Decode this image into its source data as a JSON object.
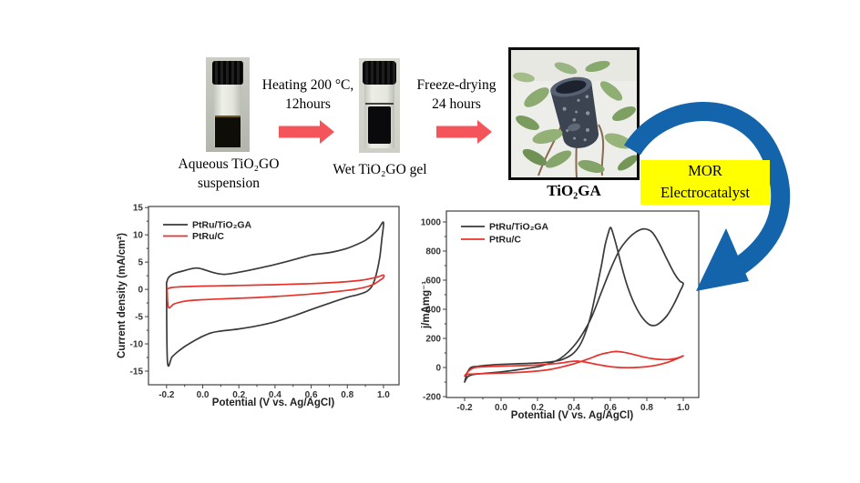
{
  "figure": {
    "process": {
      "step1_label": [
        "Aqueous TiO₂GO",
        "suspension"
      ],
      "arrow1_label": [
        "Heating 200 °C,",
        "12hours"
      ],
      "step2_label": "Wet TiO₂GO gel",
      "arrow2_label": [
        "Freeze-drying",
        "24 hours"
      ],
      "product_label": "TiO₂GA",
      "callout": [
        "MOR",
        "Electrocatalyst"
      ]
    },
    "colors": {
      "process_arrow": "#f4555b",
      "callout_bg": "#ffff00",
      "flow_arrow": "#1464ac",
      "series_black": "#3a3a3a",
      "series_red": "#e8322b"
    }
  },
  "chart_data": [
    {
      "type": "line",
      "name": "cv-chart",
      "title": "",
      "xlabel": "Potential (V vs. Ag/AgCl)",
      "ylabel": "Current density (mA/cm²)",
      "xlim": [
        -0.3,
        1.086
      ],
      "ylim": [
        -17.5,
        15.2
      ],
      "grid": false,
      "legend_position": "top-left",
      "x_tick_values": [
        -0.2,
        0.0,
        0.2,
        0.4,
        0.6,
        0.8,
        1.0
      ],
      "x_tick_labels": [
        "-0.2",
        "0.0",
        "0.2",
        "0.4",
        "0.6",
        "0.8",
        "1.0"
      ],
      "y_tick_values": [
        -15,
        -10,
        -5,
        0,
        5,
        10,
        15
      ],
      "y_tick_labels": [
        "-15",
        "-10",
        "-5",
        "0",
        "5",
        "10",
        "15"
      ],
      "x_minor": [
        -0.1,
        0.1,
        0.3,
        0.5,
        0.7,
        0.9
      ],
      "y_minor": [
        -12.5,
        -7.5,
        -2.5,
        2.5,
        7.5,
        12.5
      ],
      "series": [
        {
          "name": "PtRu/TiO₂GA",
          "color": "#3a3a3a",
          "points": [
            [
              -0.2,
              1.2
            ],
            [
              -0.19,
              2.1
            ],
            [
              -0.17,
              2.7
            ],
            [
              -0.14,
              3.1
            ],
            [
              -0.1,
              3.45
            ],
            [
              -0.06,
              3.8
            ],
            [
              -0.03,
              3.9
            ],
            [
              0.0,
              3.7
            ],
            [
              0.04,
              3.25
            ],
            [
              0.08,
              2.9
            ],
            [
              0.12,
              2.75
            ],
            [
              0.16,
              2.9
            ],
            [
              0.22,
              3.25
            ],
            [
              0.3,
              3.8
            ],
            [
              0.4,
              4.55
            ],
            [
              0.5,
              5.4
            ],
            [
              0.6,
              6.3
            ],
            [
              0.66,
              6.55
            ],
            [
              0.72,
              6.85
            ],
            [
              0.8,
              7.55
            ],
            [
              0.86,
              8.35
            ],
            [
              0.9,
              9.0
            ],
            [
              0.94,
              10.0
            ],
            [
              0.97,
              11.0
            ],
            [
              1.0,
              12.3
            ],
            [
              0.99,
              9.0
            ],
            [
              0.98,
              6.0
            ],
            [
              0.965,
              3.4
            ],
            [
              0.95,
              1.6
            ],
            [
              0.935,
              0.5
            ],
            [
              0.92,
              -0.05
            ],
            [
              0.9,
              -0.5
            ],
            [
              0.85,
              -1.05
            ],
            [
              0.8,
              -1.45
            ],
            [
              0.7,
              -2.55
            ],
            [
              0.6,
              -3.7
            ],
            [
              0.5,
              -4.9
            ],
            [
              0.4,
              -5.95
            ],
            [
              0.3,
              -6.7
            ],
            [
              0.2,
              -7.25
            ],
            [
              0.1,
              -7.65
            ],
            [
              0.05,
              -7.95
            ],
            [
              0.0,
              -8.6
            ],
            [
              -0.05,
              -9.5
            ],
            [
              -0.1,
              -10.5
            ],
            [
              -0.14,
              -11.5
            ],
            [
              -0.17,
              -12.4
            ],
            [
              -0.195,
              -13.2
            ],
            [
              -0.2,
              1.2
            ]
          ]
        },
        {
          "name": "PtRu/C",
          "color": "#e8322b",
          "points": [
            [
              -0.197,
              0.1
            ],
            [
              -0.17,
              0.35
            ],
            [
              -0.13,
              0.45
            ],
            [
              -0.08,
              0.52
            ],
            [
              0.0,
              0.6
            ],
            [
              0.1,
              0.65
            ],
            [
              0.2,
              0.72
            ],
            [
              0.3,
              0.78
            ],
            [
              0.4,
              0.86
            ],
            [
              0.5,
              0.95
            ],
            [
              0.6,
              1.06
            ],
            [
              0.7,
              1.2
            ],
            [
              0.8,
              1.42
            ],
            [
              0.88,
              1.68
            ],
            [
              0.93,
              1.98
            ],
            [
              0.97,
              2.3
            ],
            [
              1.0,
              2.62
            ],
            [
              1.0,
              2.15
            ],
            [
              0.975,
              1.55
            ],
            [
              0.95,
              1.0
            ],
            [
              0.92,
              0.6
            ],
            [
              0.88,
              0.25
            ],
            [
              0.84,
              0.0
            ],
            [
              0.8,
              -0.18
            ],
            [
              0.7,
              -0.55
            ],
            [
              0.6,
              -0.85
            ],
            [
              0.5,
              -1.1
            ],
            [
              0.4,
              -1.32
            ],
            [
              0.3,
              -1.5
            ],
            [
              0.2,
              -1.63
            ],
            [
              0.1,
              -1.76
            ],
            [
              0.0,
              -1.9
            ],
            [
              -0.07,
              -2.05
            ],
            [
              -0.12,
              -2.3
            ],
            [
              -0.16,
              -2.7
            ],
            [
              -0.19,
              -3.25
            ],
            [
              -0.197,
              0.1
            ]
          ]
        }
      ]
    },
    {
      "type": "line",
      "name": "mor-chart",
      "title": "",
      "xlabel": "Potential (V vs. Ag/AgCl)",
      "ylabel": "j/mAmg⁻¹",
      "xlim": [
        -0.3,
        1.085
      ],
      "ylim": [
        -206,
        1075
      ],
      "grid": false,
      "legend_position": "top-left",
      "x_tick_values": [
        -0.2,
        0.0,
        0.2,
        0.4,
        0.6,
        0.8,
        1.0
      ],
      "x_tick_labels": [
        "-0.2",
        "0.0",
        "0.2",
        "0.4",
        "0.6",
        "0.8",
        "1.0"
      ],
      "y_tick_values": [
        -200,
        0,
        200,
        400,
        600,
        800,
        1000
      ],
      "y_tick_labels": [
        "-200",
        "0",
        "200",
        "400",
        "600",
        "800",
        "1000"
      ],
      "x_minor": [
        -0.1,
        0.1,
        0.3,
        0.5,
        0.7,
        0.9
      ],
      "y_minor": [
        -100,
        100,
        300,
        500,
        700,
        900
      ],
      "series": [
        {
          "name": "PtRu/TiO₂GA",
          "color": "#3a3a3a",
          "points": [
            [
              -0.2,
              -100
            ],
            [
              -0.185,
              -66
            ],
            [
              -0.165,
              -52
            ],
            [
              -0.13,
              -45
            ],
            [
              -0.07,
              -38
            ],
            [
              0.0,
              -30
            ],
            [
              0.08,
              -18
            ],
            [
              0.15,
              -5
            ],
            [
              0.21,
              8
            ],
            [
              0.27,
              30
            ],
            [
              0.32,
              58
            ],
            [
              0.37,
              108
            ],
            [
              0.42,
              180
            ],
            [
              0.46,
              258
            ],
            [
              0.5,
              355
            ],
            [
              0.55,
              515
            ],
            [
              0.6,
              672
            ],
            [
              0.65,
              806
            ],
            [
              0.7,
              888
            ],
            [
              0.75,
              938
            ],
            [
              0.79,
              952
            ],
            [
              0.83,
              928
            ],
            [
              0.87,
              848
            ],
            [
              0.91,
              745
            ],
            [
              0.95,
              648
            ],
            [
              0.98,
              595
            ],
            [
              1.0,
              575
            ],
            [
              0.98,
              518
            ],
            [
              0.95,
              438
            ],
            [
              0.91,
              355
            ],
            [
              0.87,
              305
            ],
            [
              0.84,
              288
            ],
            [
              0.81,
              298
            ],
            [
              0.77,
              352
            ],
            [
              0.73,
              442
            ],
            [
              0.69,
              572
            ],
            [
              0.66,
              705
            ],
            [
              0.63,
              852
            ],
            [
              0.61,
              938
            ],
            [
              0.6,
              962
            ],
            [
              0.59,
              930
            ],
            [
              0.57,
              835
            ],
            [
              0.55,
              695
            ],
            [
              0.52,
              515
            ],
            [
              0.49,
              345
            ],
            [
              0.46,
              228
            ],
            [
              0.43,
              148
            ],
            [
              0.39,
              90
            ],
            [
              0.34,
              57
            ],
            [
              0.29,
              42
            ],
            [
              0.22,
              33
            ],
            [
              0.14,
              28
            ],
            [
              0.05,
              24
            ],
            [
              -0.03,
              20
            ],
            [
              -0.09,
              14
            ],
            [
              -0.13,
              8
            ],
            [
              -0.165,
              0
            ],
            [
              -0.185,
              -35
            ],
            [
              -0.2,
              -100
            ]
          ]
        },
        {
          "name": "PtRu/C",
          "color": "#e8322b",
          "points": [
            [
              -0.2,
              -58
            ],
            [
              -0.185,
              -48
            ],
            [
              -0.15,
              -44
            ],
            [
              -0.1,
              -42
            ],
            [
              -0.02,
              -39
            ],
            [
              0.06,
              -36
            ],
            [
              0.13,
              -31
            ],
            [
              0.2,
              -24
            ],
            [
              0.27,
              -13
            ],
            [
              0.33,
              3
            ],
            [
              0.39,
              22
            ],
            [
              0.44,
              42
            ],
            [
              0.49,
              64
            ],
            [
              0.54,
              88
            ],
            [
              0.59,
              103
            ],
            [
              0.63,
              110
            ],
            [
              0.67,
              105
            ],
            [
              0.72,
              92
            ],
            [
              0.77,
              76
            ],
            [
              0.82,
              63
            ],
            [
              0.87,
              56
            ],
            [
              0.92,
              55
            ],
            [
              0.96,
              63
            ],
            [
              1.0,
              80
            ],
            [
              0.97,
              63
            ],
            [
              0.93,
              43
            ],
            [
              0.89,
              27
            ],
            [
              0.85,
              15
            ],
            [
              0.8,
              6
            ],
            [
              0.75,
              1
            ],
            [
              0.7,
              -1
            ],
            [
              0.65,
              0
            ],
            [
              0.6,
              6
            ],
            [
              0.55,
              16
            ],
            [
              0.5,
              28
            ],
            [
              0.46,
              38
            ],
            [
              0.42,
              44
            ],
            [
              0.38,
              41
            ],
            [
              0.34,
              33
            ],
            [
              0.3,
              27
            ],
            [
              0.24,
              21
            ],
            [
              0.18,
              16
            ],
            [
              0.1,
              13
            ],
            [
              0.02,
              10
            ],
            [
              -0.06,
              7
            ],
            [
              -0.11,
              4
            ],
            [
              -0.15,
              -2
            ],
            [
              -0.18,
              -26
            ],
            [
              -0.2,
              -58
            ]
          ]
        }
      ]
    }
  ]
}
